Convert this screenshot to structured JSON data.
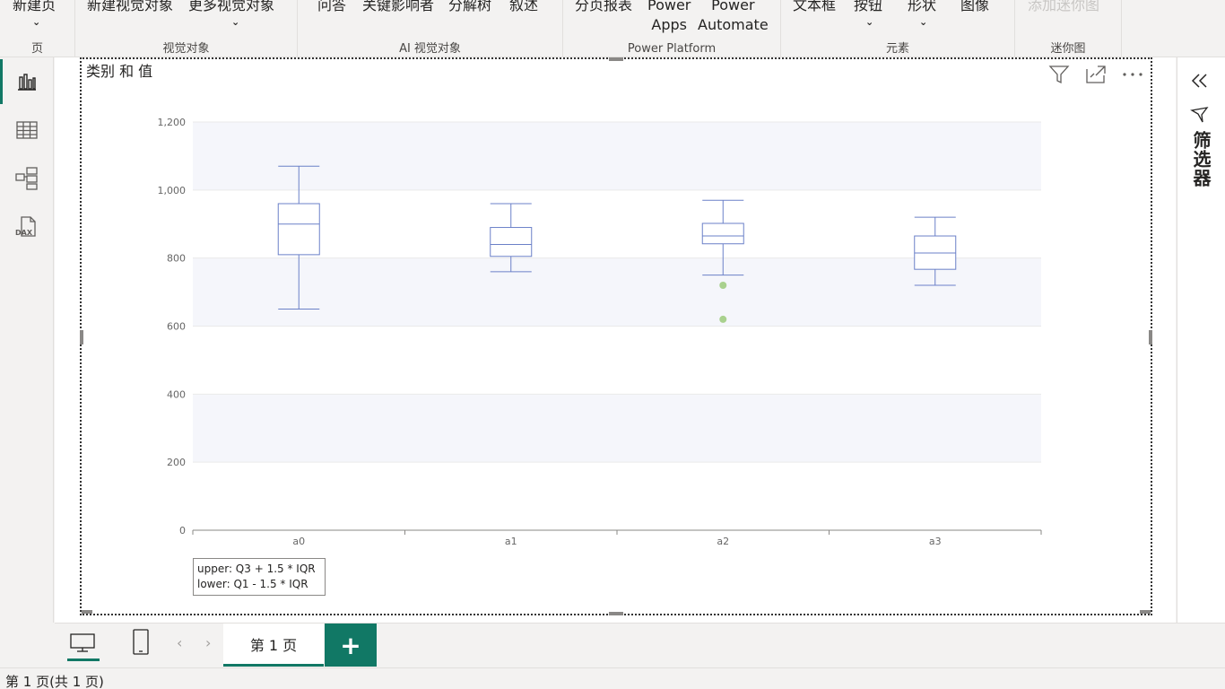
{
  "ribbon": {
    "new_page": "新建页",
    "new_visual": "新建视觉对象",
    "more_visuals": "更多视觉对象",
    "qa": "问答",
    "key_influencers": "关键影响者",
    "decomposition_tree": "分解树",
    "narrative": "叙述",
    "paginated_report": "分页报表",
    "power_apps_1": "Power",
    "power_apps_2": "Apps",
    "power_automate_1": "Power",
    "power_automate_2": "Automate",
    "textbox": "文本框",
    "buttons": "按钮",
    "shapes": "形状",
    "image": "图像",
    "add_sparkline": "添加迷你图",
    "groups": {
      "page": "页",
      "visuals": "视觉对象",
      "ai_visuals": "AI 视觉对象",
      "power_platform": "Power Platform",
      "elements": "元素",
      "sparklines": "迷你图"
    }
  },
  "visual": {
    "title": "类别 和 值"
  },
  "chart_data": {
    "type": "boxplot",
    "categories": [
      "a0",
      "a1",
      "a2",
      "a3"
    ],
    "boxes": [
      {
        "category": "a0",
        "min": 650,
        "q1": 810,
        "median": 900,
        "q3": 960,
        "max": 1070,
        "outliers": []
      },
      {
        "category": "a1",
        "min": 760,
        "q1": 805,
        "median": 840,
        "q3": 890,
        "max": 960,
        "outliers": []
      },
      {
        "category": "a2",
        "min": 750,
        "q1": 842,
        "median": 865,
        "q3": 902,
        "max": 970,
        "outliers": [
          720,
          620
        ]
      },
      {
        "category": "a3",
        "min": 720,
        "q1": 767,
        "median": 815,
        "q3": 865,
        "max": 920,
        "outliers": []
      }
    ],
    "y_ticks": [
      "0",
      "200",
      "400",
      "600",
      "800",
      "1,000",
      "1,200"
    ],
    "ylim": [
      0,
      1200
    ],
    "grid": "alternating bands",
    "colors": {
      "box": "#6b80c8",
      "outlier": "#a9d18e",
      "band": "#f5f6fb"
    },
    "legend_lines": [
      "upper: Q3 + 1.5 * IQR",
      "lower: Q1 - 1.5 * IQR"
    ]
  },
  "filter_pane": {
    "label": "筛选器"
  },
  "tabs": {
    "page1": "第 1 页",
    "add": "+"
  },
  "status": {
    "text": "第 1 页(共 1 页)"
  },
  "colors": {
    "accent": "#117865"
  }
}
